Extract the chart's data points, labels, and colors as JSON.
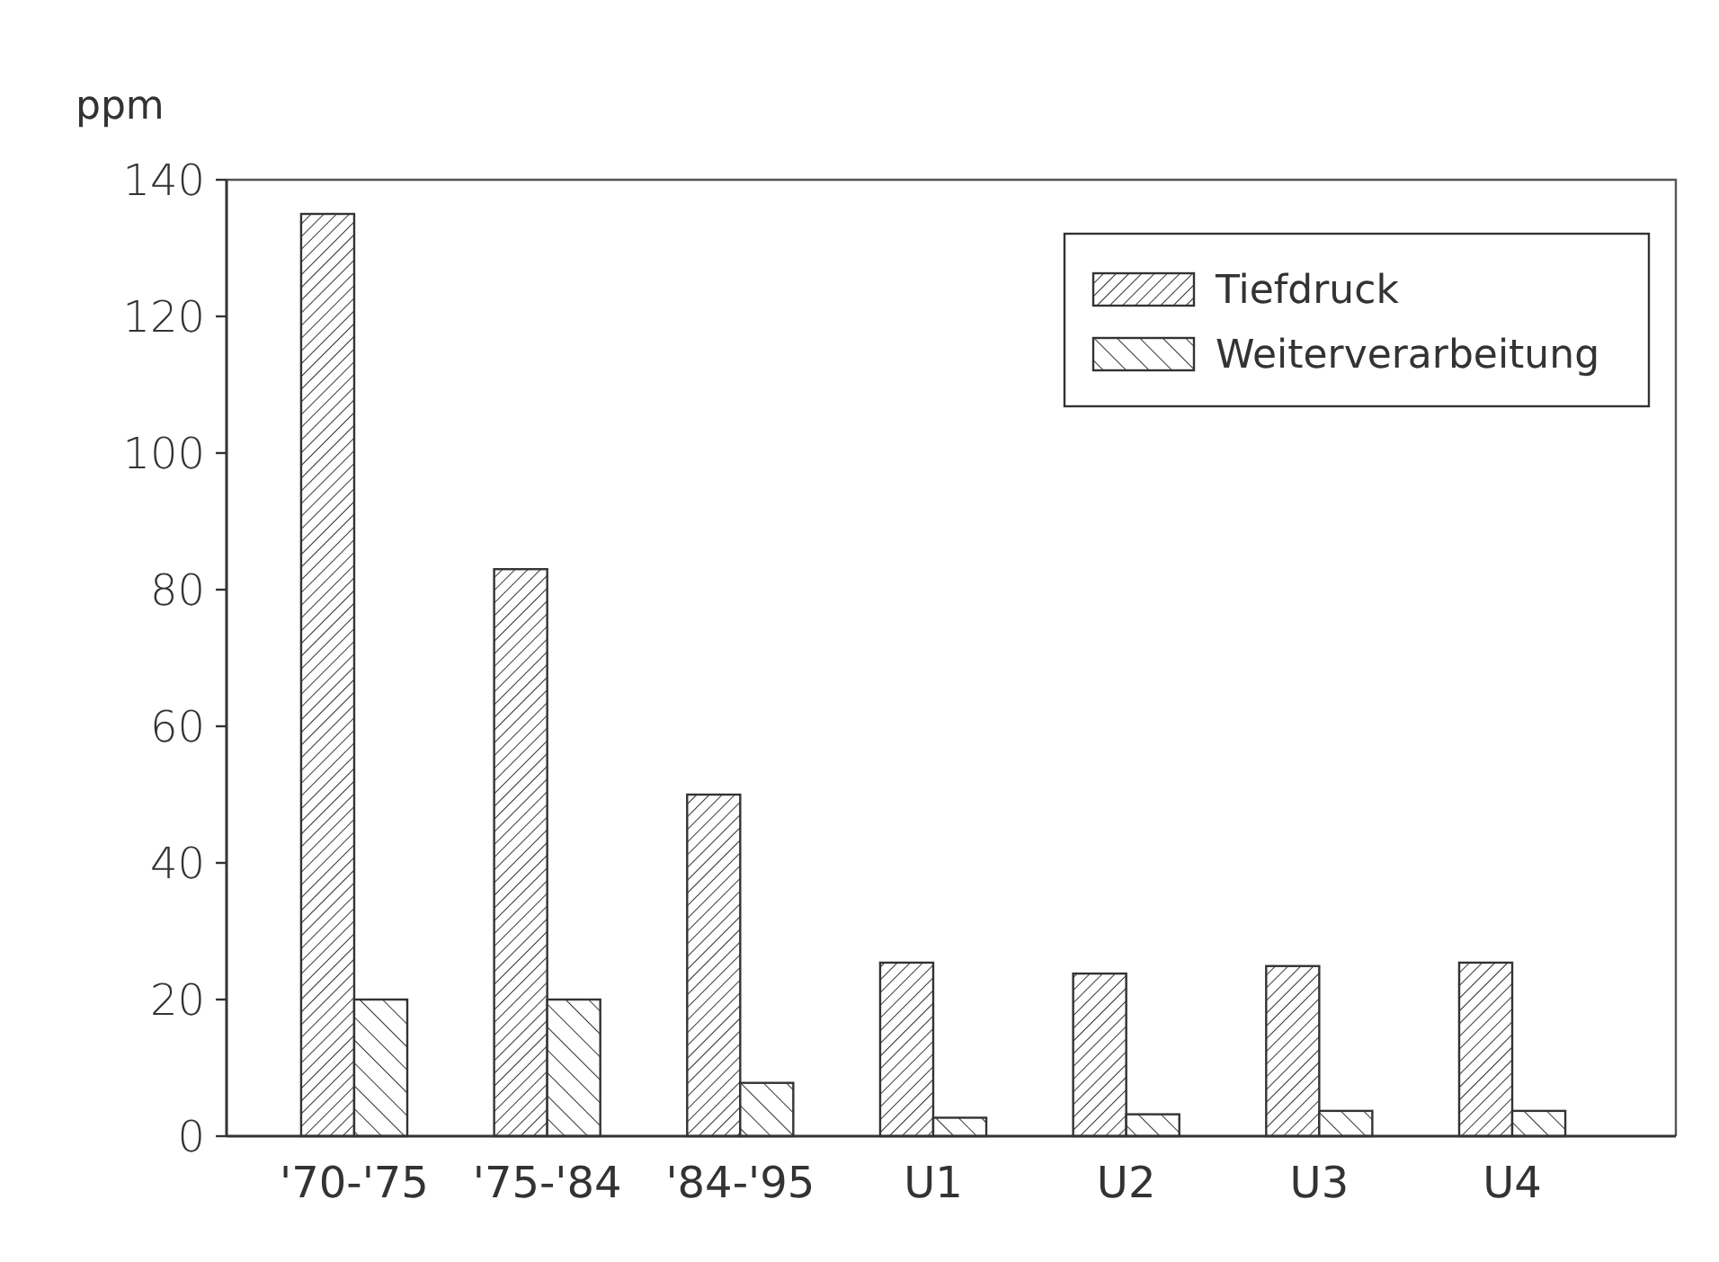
{
  "chart_data": {
    "type": "bar",
    "ylabel": "ppm",
    "categories": [
      "'70-'75",
      "'75-'84",
      "'84-'95",
      "U1",
      "U2",
      "U3",
      "U4"
    ],
    "series": [
      {
        "name": "Tiefdruck",
        "color": "#333333",
        "values": [
          135,
          83,
          50,
          25.4,
          23.8,
          24.9,
          25.4
        ]
      },
      {
        "name": "Weiterverarbeitung",
        "color": "#333333",
        "values": [
          20,
          20,
          7.8,
          2.7,
          3.2,
          3.7,
          3.7
        ]
      }
    ],
    "ylim": [
      0,
      140
    ],
    "yticks": [
      0,
      20,
      40,
      60,
      80,
      100,
      120,
      140
    ],
    "grid": false,
    "legend": "top right"
  }
}
